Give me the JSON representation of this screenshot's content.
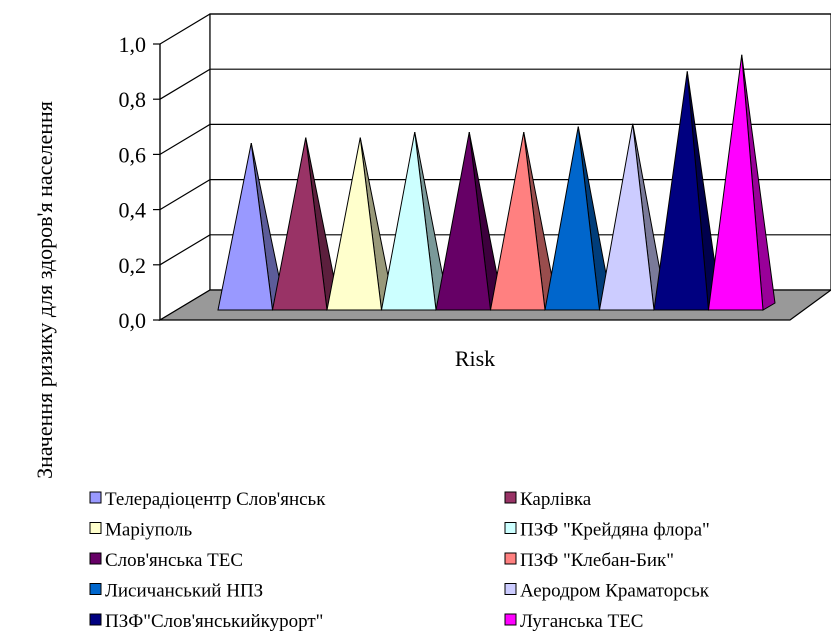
{
  "chart_data": {
    "type": "bar",
    "chart_style": "3d-pyramid",
    "xlabel": "Risk",
    "ylabel": "Значення ризику для здоров'я населення",
    "ylim": [
      0,
      1.0
    ],
    "yticks": [
      "0,0",
      "0,2",
      "0,4",
      "0,6",
      "0,8",
      "1,0"
    ],
    "grid": true,
    "legend_position": "bottom",
    "categories": [
      "Risk"
    ],
    "series": [
      {
        "name": "Телерадіоцентр Слов'янськ",
        "values": [
          0.63
        ],
        "color": "#9999FF"
      },
      {
        "name": "Карлівка",
        "values": [
          0.65
        ],
        "color": "#993366"
      },
      {
        "name": "Маріуполь",
        "values": [
          0.65
        ],
        "color": "#FFFFCC"
      },
      {
        "name": "ПЗФ \"Крейдяна флора\"",
        "values": [
          0.67
        ],
        "color": "#CCFFFF"
      },
      {
        "name": "Слов'янська ТЕС",
        "values": [
          0.67
        ],
        "color": "#660066"
      },
      {
        "name": "ПЗФ  \"Клебан-Бик\"",
        "values": [
          0.67
        ],
        "color": "#FF8080"
      },
      {
        "name": "Лисичанський НПЗ",
        "values": [
          0.69
        ],
        "color": "#0066CC"
      },
      {
        "name": "Аеродром Краматорськ",
        "values": [
          0.7
        ],
        "color": "#CCCCFF"
      },
      {
        "name": "ПЗФ\"Слов'янськийкурорт\"",
        "values": [
          0.89
        ],
        "color": "#000080"
      },
      {
        "name": "Луганська ТЕС",
        "values": [
          0.95
        ],
        "color": "#FF00FF"
      }
    ]
  }
}
